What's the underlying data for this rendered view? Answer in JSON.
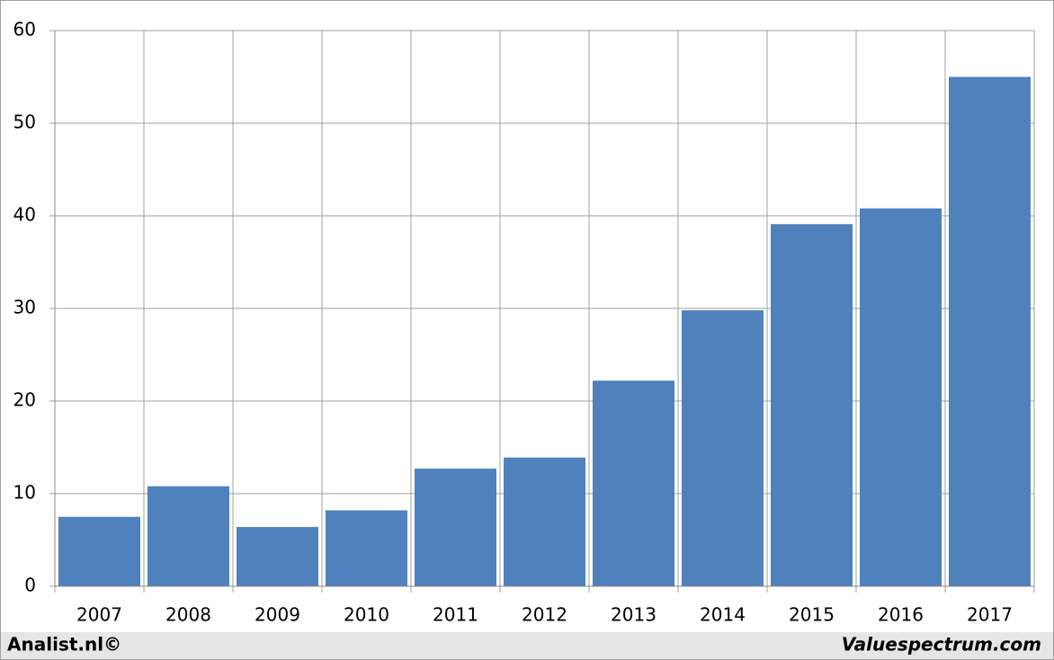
{
  "chart_data": {
    "type": "bar",
    "categories": [
      "2007",
      "2008",
      "2009",
      "2010",
      "2011",
      "2012",
      "2013",
      "2014",
      "2015",
      "2016",
      "2017"
    ],
    "values": [
      7.5,
      10.8,
      6.4,
      8.2,
      12.7,
      13.9,
      22.2,
      29.8,
      39.1,
      40.8,
      55.0
    ],
    "color": "#4f81bd",
    "ylim": [
      0,
      60
    ],
    "yticks": [
      0,
      10,
      20,
      30,
      40,
      50,
      60
    ],
    "grid": true,
    "source": "Analist.nl©",
    "credit": "Valuespectrum.com"
  }
}
